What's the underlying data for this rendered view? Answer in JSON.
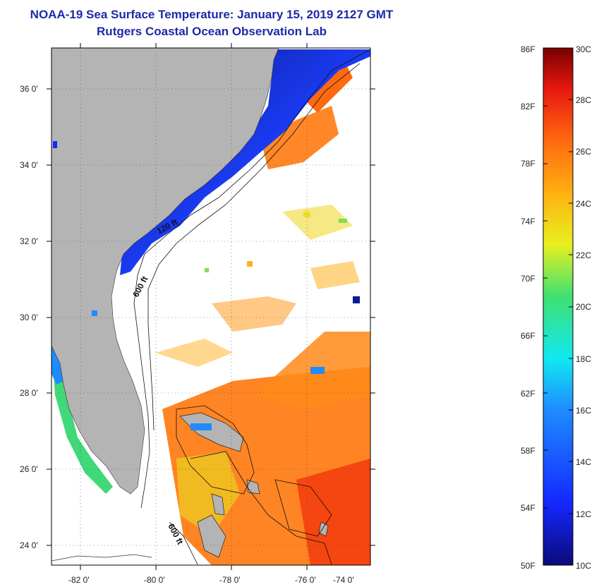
{
  "header": {
    "title": "NOAA-19 Sea Surface Temperature:  January 15, 2019 2127 GMT",
    "subtitle": "Rutgers Coastal Ocean Observation Lab"
  },
  "map": {
    "lat_labels": [
      "36 0'",
      "34 0'",
      "32 0'",
      "30 0'",
      "28 0'",
      "26 0'",
      "24 0'"
    ],
    "lon_labels": [
      "-82 0'",
      "-80 0'",
      "-78 0'",
      "-76 0'",
      "-74 0'"
    ],
    "contour_labels": [
      "120 ft",
      "600 ft",
      "600 ft"
    ],
    "colors": {
      "land": "#b4b4b4",
      "cloud": "#ffffff",
      "cold": "#1a2fe0",
      "warm": "#ff7a10"
    }
  },
  "colorbar": {
    "fahrenheit_labels": [
      "86F",
      "82F",
      "78F",
      "74F",
      "70F",
      "66F",
      "62F",
      "58F",
      "54F",
      "50F"
    ],
    "celsius_labels": [
      "30C",
      "28C",
      "26C",
      "24C",
      "22C",
      "20C",
      "18C",
      "16C",
      "14C",
      "12C",
      "10C"
    ]
  }
}
